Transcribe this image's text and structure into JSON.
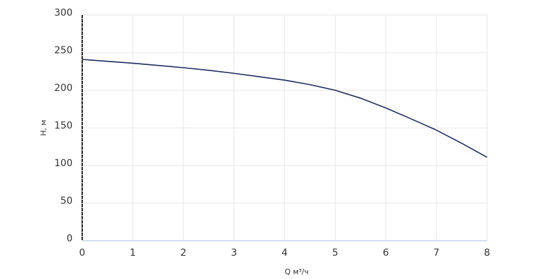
{
  "chart_data": {
    "type": "line",
    "x_label": "Q м³/ч",
    "y_label": "H, м",
    "x": [
      0,
      0.5,
      1,
      1.5,
      2,
      2.5,
      3,
      3.5,
      4,
      4.5,
      5,
      5.5,
      6,
      6.5,
      7,
      7.5,
      8
    ],
    "series": [
      {
        "color": "#1b2a5c",
        "values": [
          241,
          238.5,
          236,
          233,
          230,
          226.5,
          222.5,
          218,
          213.5,
          207.5,
          200,
          189.5,
          176.5,
          162,
          147,
          129.5,
          111
        ]
      }
    ],
    "xlim": [
      0,
      8
    ],
    "xticks": [
      0,
      1,
      2,
      3,
      4,
      5,
      6,
      7,
      8
    ],
    "ylim": [
      0,
      300
    ],
    "yticks": [
      0,
      50,
      100,
      150,
      200,
      250,
      300
    ],
    "grid": true
  }
}
